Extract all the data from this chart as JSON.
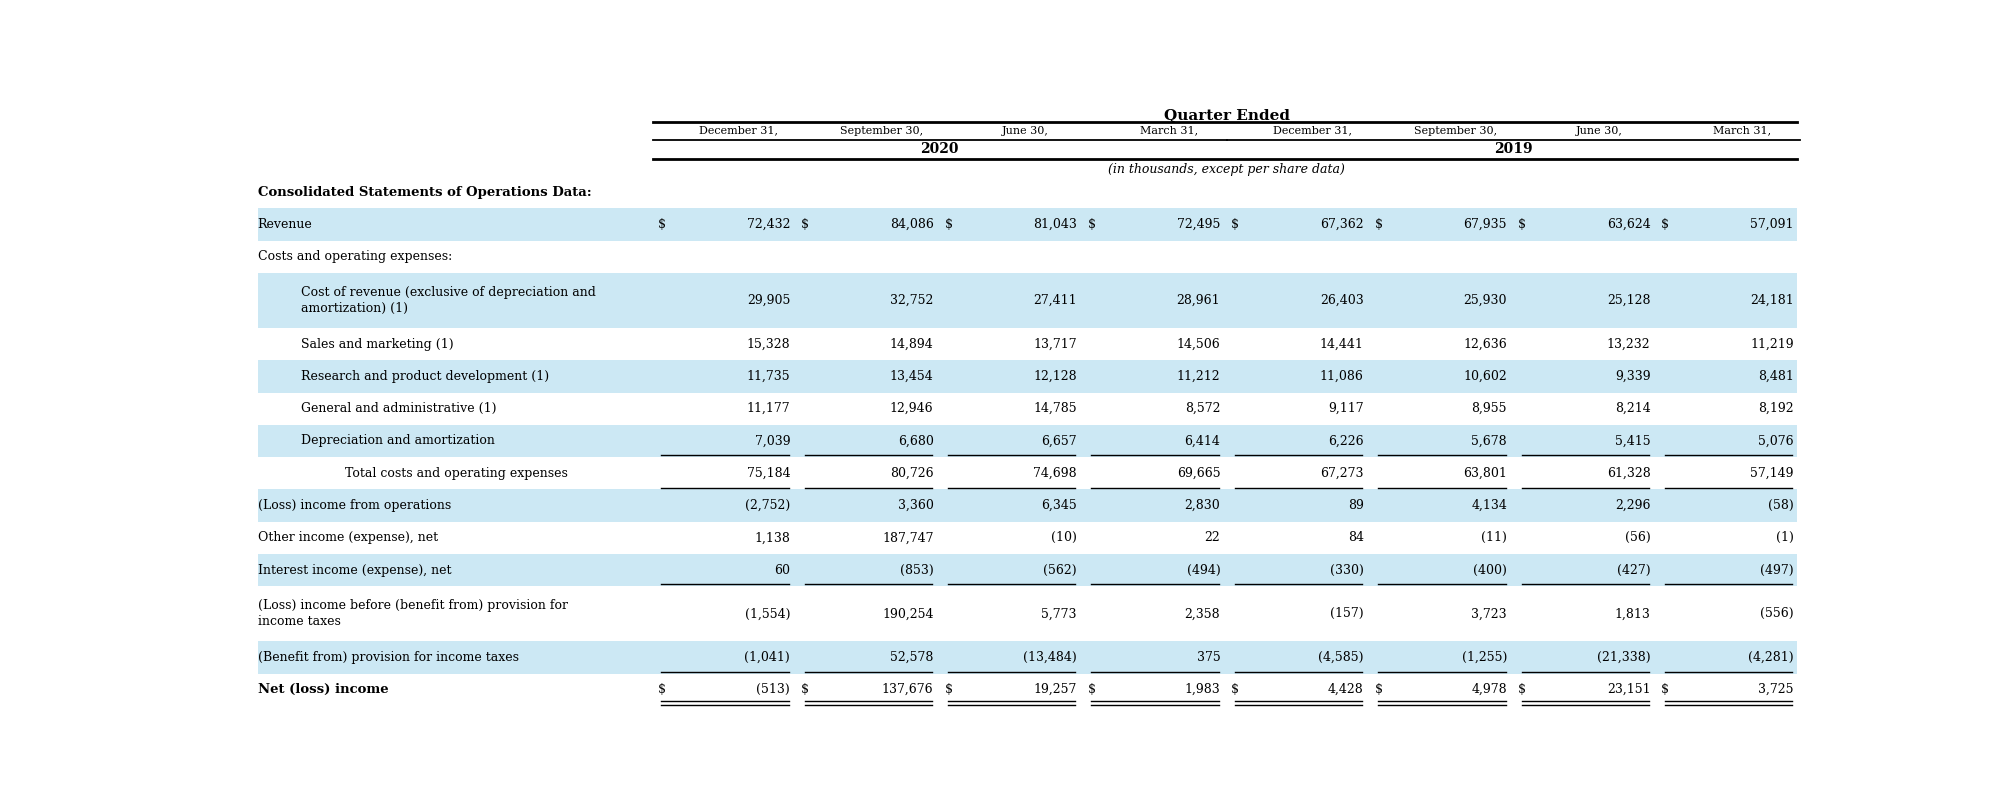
{
  "title": "Quarter Ended",
  "subtitle": "(in thousands, except per share data)",
  "col_headers": [
    "December 31,",
    "September 30,",
    "June 30,",
    "March 31,",
    "December 31,",
    "September 30,",
    "June 30,",
    "March 31,"
  ],
  "year_2020": "2020",
  "year_2019": "2019",
  "rows": [
    {
      "label": "Consolidated Statements of Operations Data:",
      "bold": true,
      "indent": 0,
      "values": [
        "",
        "",
        "",
        "",
        "",
        "",
        "",
        ""
      ],
      "dollar_sign": [
        false,
        false,
        false,
        false,
        false,
        false,
        false,
        false
      ],
      "bg": "white",
      "underline": false,
      "double_underline": false
    },
    {
      "label": "Revenue",
      "bold": false,
      "indent": 0,
      "values": [
        "72,432",
        "84,086",
        "81,043",
        "72,495",
        "67,362",
        "67,935",
        "63,624",
        "57,091"
      ],
      "dollar_sign": [
        true,
        true,
        true,
        true,
        true,
        true,
        true,
        true
      ],
      "bg": "blue",
      "underline": false,
      "double_underline": false
    },
    {
      "label": "Costs and operating expenses:",
      "bold": false,
      "indent": 0,
      "values": [
        "",
        "",
        "",
        "",
        "",
        "",
        "",
        ""
      ],
      "dollar_sign": [
        false,
        false,
        false,
        false,
        false,
        false,
        false,
        false
      ],
      "bg": "white",
      "underline": false,
      "double_underline": false
    },
    {
      "label": "Cost of revenue (exclusive of depreciation and\namortization) (1)",
      "bold": false,
      "indent": 1,
      "values": [
        "29,905",
        "32,752",
        "27,411",
        "28,961",
        "26,403",
        "25,930",
        "25,128",
        "24,181"
      ],
      "dollar_sign": [
        false,
        false,
        false,
        false,
        false,
        false,
        false,
        false
      ],
      "bg": "blue",
      "underline": false,
      "double_underline": false
    },
    {
      "label": "Sales and marketing (1)",
      "bold": false,
      "indent": 1,
      "values": [
        "15,328",
        "14,894",
        "13,717",
        "14,506",
        "14,441",
        "12,636",
        "13,232",
        "11,219"
      ],
      "dollar_sign": [
        false,
        false,
        false,
        false,
        false,
        false,
        false,
        false
      ],
      "bg": "white",
      "underline": false,
      "double_underline": false
    },
    {
      "label": "Research and product development (1)",
      "bold": false,
      "indent": 1,
      "values": [
        "11,735",
        "13,454",
        "12,128",
        "11,212",
        "11,086",
        "10,602",
        "9,339",
        "8,481"
      ],
      "dollar_sign": [
        false,
        false,
        false,
        false,
        false,
        false,
        false,
        false
      ],
      "bg": "blue",
      "underline": false,
      "double_underline": false
    },
    {
      "label": "General and administrative (1)",
      "bold": false,
      "indent": 1,
      "values": [
        "11,177",
        "12,946",
        "14,785",
        "8,572",
        "9,117",
        "8,955",
        "8,214",
        "8,192"
      ],
      "dollar_sign": [
        false,
        false,
        false,
        false,
        false,
        false,
        false,
        false
      ],
      "bg": "white",
      "underline": false,
      "double_underline": false
    },
    {
      "label": "Depreciation and amortization",
      "bold": false,
      "indent": 1,
      "values": [
        "7,039",
        "6,680",
        "6,657",
        "6,414",
        "6,226",
        "5,678",
        "5,415",
        "5,076"
      ],
      "dollar_sign": [
        false,
        false,
        false,
        false,
        false,
        false,
        false,
        false
      ],
      "bg": "blue",
      "underline": true,
      "double_underline": false
    },
    {
      "label": "Total costs and operating expenses",
      "bold": false,
      "indent": 2,
      "values": [
        "75,184",
        "80,726",
        "74,698",
        "69,665",
        "67,273",
        "63,801",
        "61,328",
        "57,149"
      ],
      "dollar_sign": [
        false,
        false,
        false,
        false,
        false,
        false,
        false,
        false
      ],
      "bg": "white",
      "underline": true,
      "double_underline": false
    },
    {
      "label": "(Loss) income from operations",
      "bold": false,
      "indent": 0,
      "values": [
        "(2,752)",
        "3,360",
        "6,345",
        "2,830",
        "89",
        "4,134",
        "2,296",
        "(58)"
      ],
      "dollar_sign": [
        false,
        false,
        false,
        false,
        false,
        false,
        false,
        false
      ],
      "bg": "blue",
      "underline": false,
      "double_underline": false
    },
    {
      "label": "Other income (expense), net",
      "bold": false,
      "indent": 0,
      "values": [
        "1,138",
        "187,747",
        "(10)",
        "22",
        "84",
        "(11)",
        "(56)",
        "(1)"
      ],
      "dollar_sign": [
        false,
        false,
        false,
        false,
        false,
        false,
        false,
        false
      ],
      "bg": "white",
      "underline": false,
      "double_underline": false
    },
    {
      "label": "Interest income (expense), net",
      "bold": false,
      "indent": 0,
      "values": [
        "60",
        "(853)",
        "(562)",
        "(494)",
        "(330)",
        "(400)",
        "(427)",
        "(497)"
      ],
      "dollar_sign": [
        false,
        false,
        false,
        false,
        false,
        false,
        false,
        false
      ],
      "bg": "blue",
      "underline": true,
      "double_underline": false
    },
    {
      "label": "(Loss) income before (benefit from) provision for\nincome taxes",
      "bold": false,
      "indent": 0,
      "values": [
        "(1,554)",
        "190,254",
        "5,773",
        "2,358",
        "(157)",
        "3,723",
        "1,813",
        "(556)"
      ],
      "dollar_sign": [
        false,
        false,
        false,
        false,
        false,
        false,
        false,
        false
      ],
      "bg": "white",
      "underline": false,
      "double_underline": false
    },
    {
      "label": "(Benefit from) provision for income taxes",
      "bold": false,
      "indent": 0,
      "values": [
        "(1,041)",
        "52,578",
        "(13,484)",
        "375",
        "(4,585)",
        "(1,255)",
        "(21,338)",
        "(4,281)"
      ],
      "dollar_sign": [
        false,
        false,
        false,
        false,
        false,
        false,
        false,
        false
      ],
      "bg": "blue",
      "underline": true,
      "double_underline": false
    },
    {
      "label": "Net (loss) income",
      "bold": true,
      "indent": 0,
      "values": [
        "(513)",
        "137,676",
        "19,257",
        "1,983",
        "4,428",
        "4,978",
        "23,151",
        "3,725"
      ],
      "dollar_sign": [
        true,
        true,
        true,
        true,
        true,
        true,
        true,
        true
      ],
      "bg": "white",
      "underline": false,
      "double_underline": true
    }
  ],
  "bg_blue": "#cce8f4",
  "bg_white": "#ffffff",
  "text_color": "#000000",
  "font_size": 9.0,
  "header_font_size": 9.0,
  "title_font_size": 11.0
}
